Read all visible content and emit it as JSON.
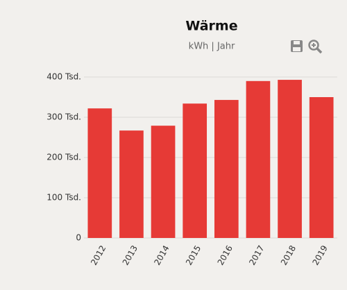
{
  "chart_data": {
    "type": "bar",
    "title": "Wärme",
    "subtitle": "kWh | Jahr",
    "categories": [
      "2012",
      "2013",
      "2014",
      "2015",
      "2016",
      "2017",
      "2018",
      "2019"
    ],
    "values": [
      322000,
      267000,
      279000,
      334000,
      343000,
      390000,
      393000,
      350000
    ],
    "color": "#e63a36",
    "ylim": [
      0,
      400000
    ],
    "yticks": [
      0,
      {
        "value": 100000,
        "label": "100 Tsd."
      },
      {
        "value": 200000,
        "label": "200 Tsd."
      },
      {
        "value": 300000,
        "label": "300 Tsd."
      },
      {
        "value": 400000,
        "label": "400 Tsd."
      }
    ],
    "grid": true
  }
}
